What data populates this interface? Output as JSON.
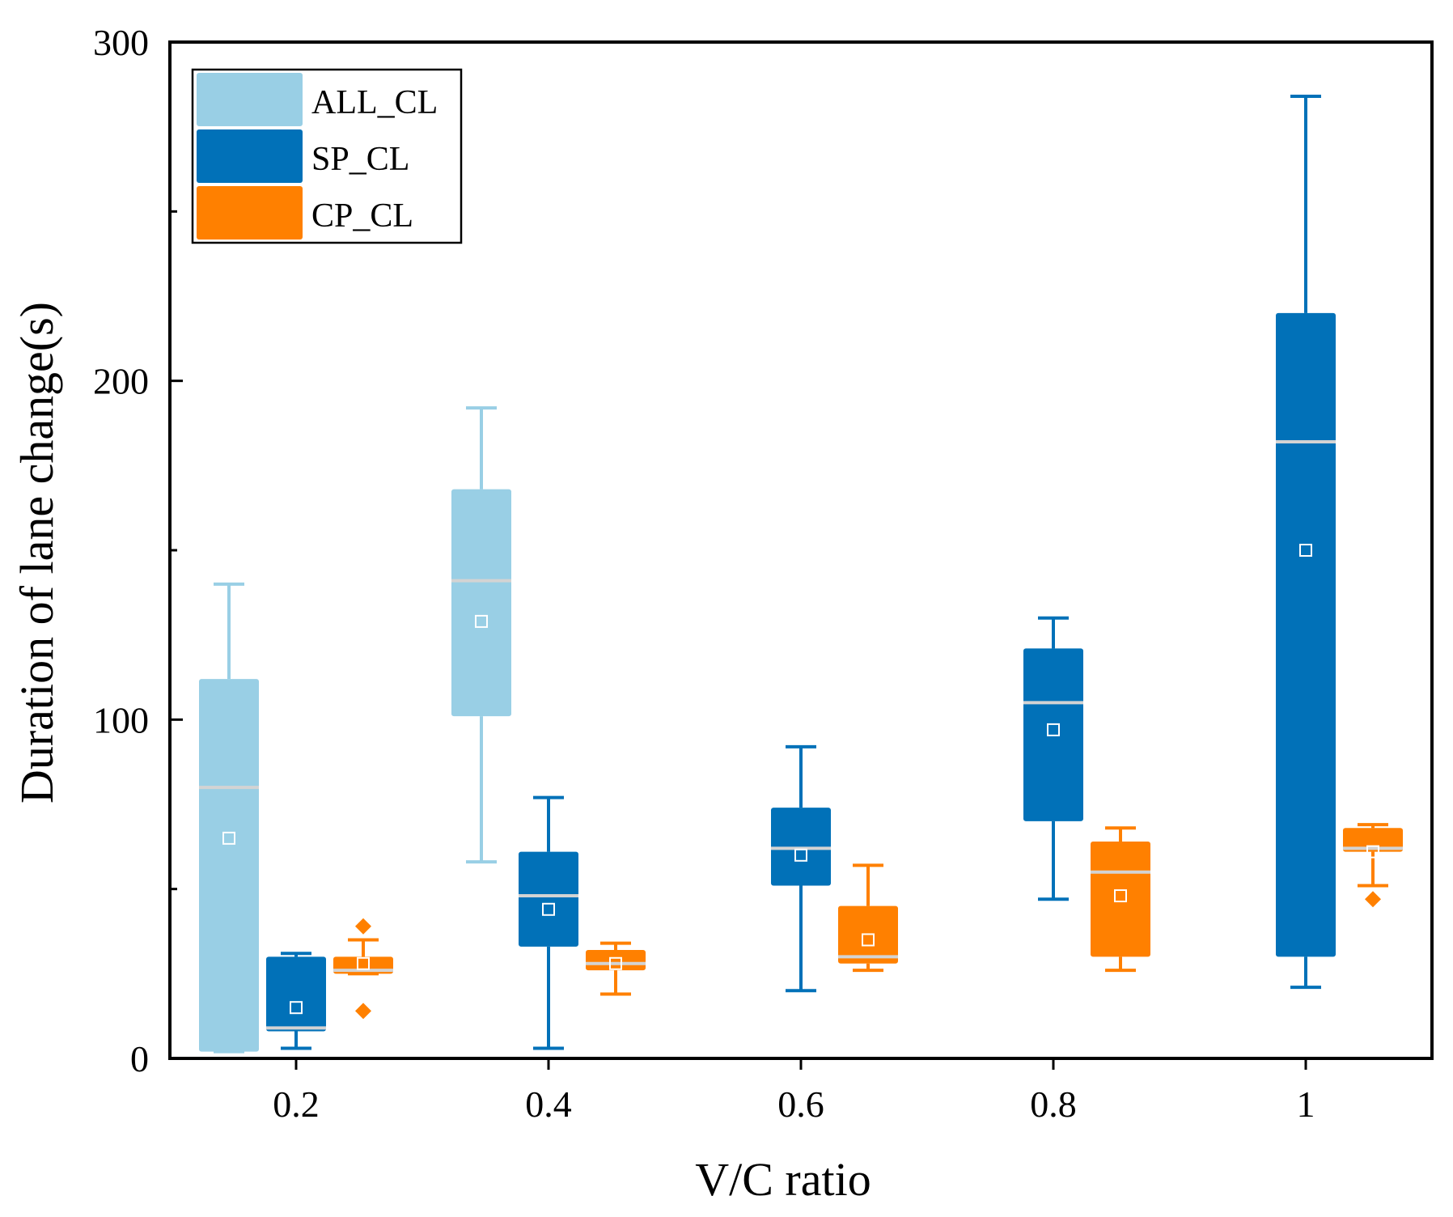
{
  "chart_data": {
    "type": "box",
    "xlabel": "V/C ratio",
    "ylabel": "Duration of lane change(s)",
    "ylim": [
      0,
      300
    ],
    "yticks": [
      0,
      100,
      200,
      300
    ],
    "categories": [
      "0.2",
      "0.4",
      "0.6",
      "0.8",
      "1"
    ],
    "legend": {
      "position": "top-left",
      "entries": [
        "ALL_CL",
        "SP_CL",
        "CP_CL"
      ]
    },
    "series": [
      {
        "name": "ALL_CL",
        "color": "#99CFE5",
        "boxes": [
          {
            "category": "0.2",
            "whisker_low": 2,
            "q1": 2,
            "median": 80,
            "q3": 112,
            "whisker_high": 140,
            "mean": 65,
            "outliers": []
          },
          {
            "category": "0.4",
            "whisker_low": 58,
            "q1": 101,
            "median": 141,
            "q3": 168,
            "whisker_high": 192,
            "mean": 129,
            "outliers": []
          }
        ]
      },
      {
        "name": "SP_CL",
        "color": "#0171B8",
        "boxes": [
          {
            "category": "0.2",
            "whisker_low": 3,
            "q1": 8,
            "median": 9,
            "q3": 30,
            "whisker_high": 31,
            "mean": 15,
            "outliers": []
          },
          {
            "category": "0.4",
            "whisker_low": 3,
            "q1": 33,
            "median": 48,
            "q3": 61,
            "whisker_high": 77,
            "mean": 44,
            "outliers": []
          },
          {
            "category": "0.6",
            "whisker_low": 20,
            "q1": 51,
            "median": 62,
            "q3": 74,
            "whisker_high": 92,
            "mean": 60,
            "outliers": []
          },
          {
            "category": "0.8",
            "whisker_low": 47,
            "q1": 70,
            "median": 105,
            "q3": 121,
            "whisker_high": 130,
            "mean": 97,
            "outliers": []
          },
          {
            "category": "1",
            "whisker_low": 21,
            "q1": 30,
            "median": 182,
            "q3": 220,
            "whisker_high": 284,
            "mean": 150,
            "outliers": []
          }
        ]
      },
      {
        "name": "CP_CL",
        "color": "#FF8000",
        "boxes": [
          {
            "category": "0.2",
            "whisker_low": 25,
            "q1": 25,
            "median": 26,
            "q3": 30,
            "whisker_high": 35,
            "mean": 28,
            "outliers": [
              14,
              39
            ]
          },
          {
            "category": "0.4",
            "whisker_low": 19,
            "q1": 26,
            "median": 28,
            "q3": 32,
            "whisker_high": 34,
            "mean": 28,
            "outliers": []
          },
          {
            "category": "0.6",
            "whisker_low": 26,
            "q1": 28,
            "median": 30,
            "q3": 45,
            "whisker_high": 57,
            "mean": 35,
            "outliers": []
          },
          {
            "category": "0.8",
            "whisker_low": 26,
            "q1": 30,
            "median": 55,
            "q3": 64,
            "whisker_high": 68,
            "mean": 48,
            "outliers": []
          },
          {
            "category": "1",
            "whisker_low": 51,
            "q1": 61,
            "median": 62,
            "q3": 68,
            "whisker_high": 69,
            "mean": 61,
            "outliers": [
              47
            ]
          }
        ]
      }
    ]
  }
}
